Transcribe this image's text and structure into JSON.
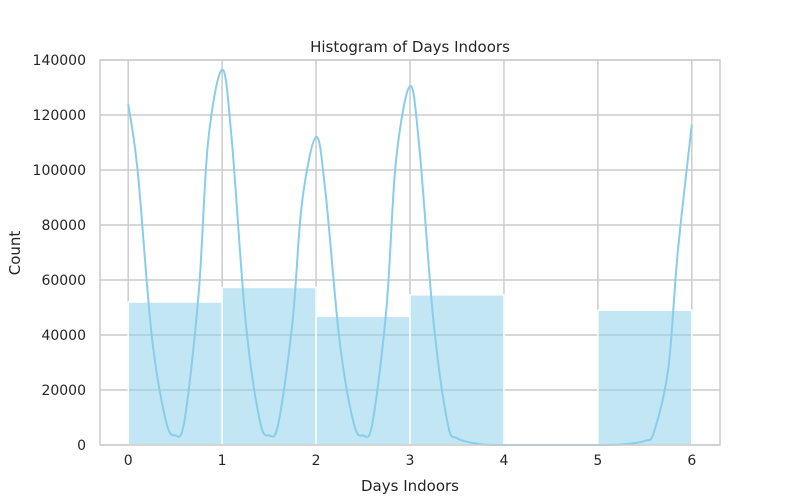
{
  "chart_data": {
    "type": "bar",
    "title": "Histogram of Days Indoors",
    "xlabel": "Days Indoors",
    "ylabel": "Count",
    "xlim": [
      -0.3,
      6.3
    ],
    "ylim": [
      0,
      140000
    ],
    "xticks": [
      0,
      1,
      2,
      3,
      4,
      5,
      6
    ],
    "yticks": [
      0,
      20000,
      40000,
      60000,
      80000,
      100000,
      120000,
      140000
    ],
    "bins": [
      {
        "start": 0,
        "end": 1,
        "value": 52000
      },
      {
        "start": 1,
        "end": 2,
        "value": 57300
      },
      {
        "start": 2,
        "end": 3,
        "value": 46800
      },
      {
        "start": 3,
        "end": 4,
        "value": 54600
      },
      {
        "start": 4,
        "end": 5,
        "value": 0
      },
      {
        "start": 5,
        "end": 6,
        "value": 49000
      }
    ],
    "kde": {
      "x": [
        0,
        0.1,
        0.25,
        0.4,
        0.5,
        0.6,
        0.75,
        0.85,
        1.0,
        1.1,
        1.25,
        1.4,
        1.5,
        1.6,
        1.75,
        1.85,
        2.0,
        2.1,
        2.25,
        2.4,
        2.5,
        2.6,
        2.75,
        2.85,
        3.0,
        3.1,
        3.25,
        3.4,
        3.5,
        3.75,
        4.0,
        5.0,
        5.25,
        5.5,
        5.6,
        5.75,
        5.85,
        6.0
      ],
      "y": [
        124000,
        100000,
        40000,
        9000,
        3500,
        9000,
        55000,
        110000,
        136500,
        112000,
        45000,
        9000,
        3500,
        8000,
        45000,
        88000,
        112000,
        92000,
        38000,
        8000,
        3500,
        8000,
        50000,
        103000,
        130500,
        108000,
        45000,
        8000,
        2500,
        300,
        0,
        0,
        200,
        1500,
        5000,
        28000,
        70000,
        116500
      ]
    },
    "colors": {
      "bar_fill": "#87ceeb",
      "bar_opacity": 0.5,
      "bar_edge": "#ffffff",
      "kde_line": "#87ceeb",
      "grid": "#cccccc",
      "axes_edge": "#cccccc",
      "text": "#262626"
    },
    "grid": true,
    "legend": "none"
  }
}
